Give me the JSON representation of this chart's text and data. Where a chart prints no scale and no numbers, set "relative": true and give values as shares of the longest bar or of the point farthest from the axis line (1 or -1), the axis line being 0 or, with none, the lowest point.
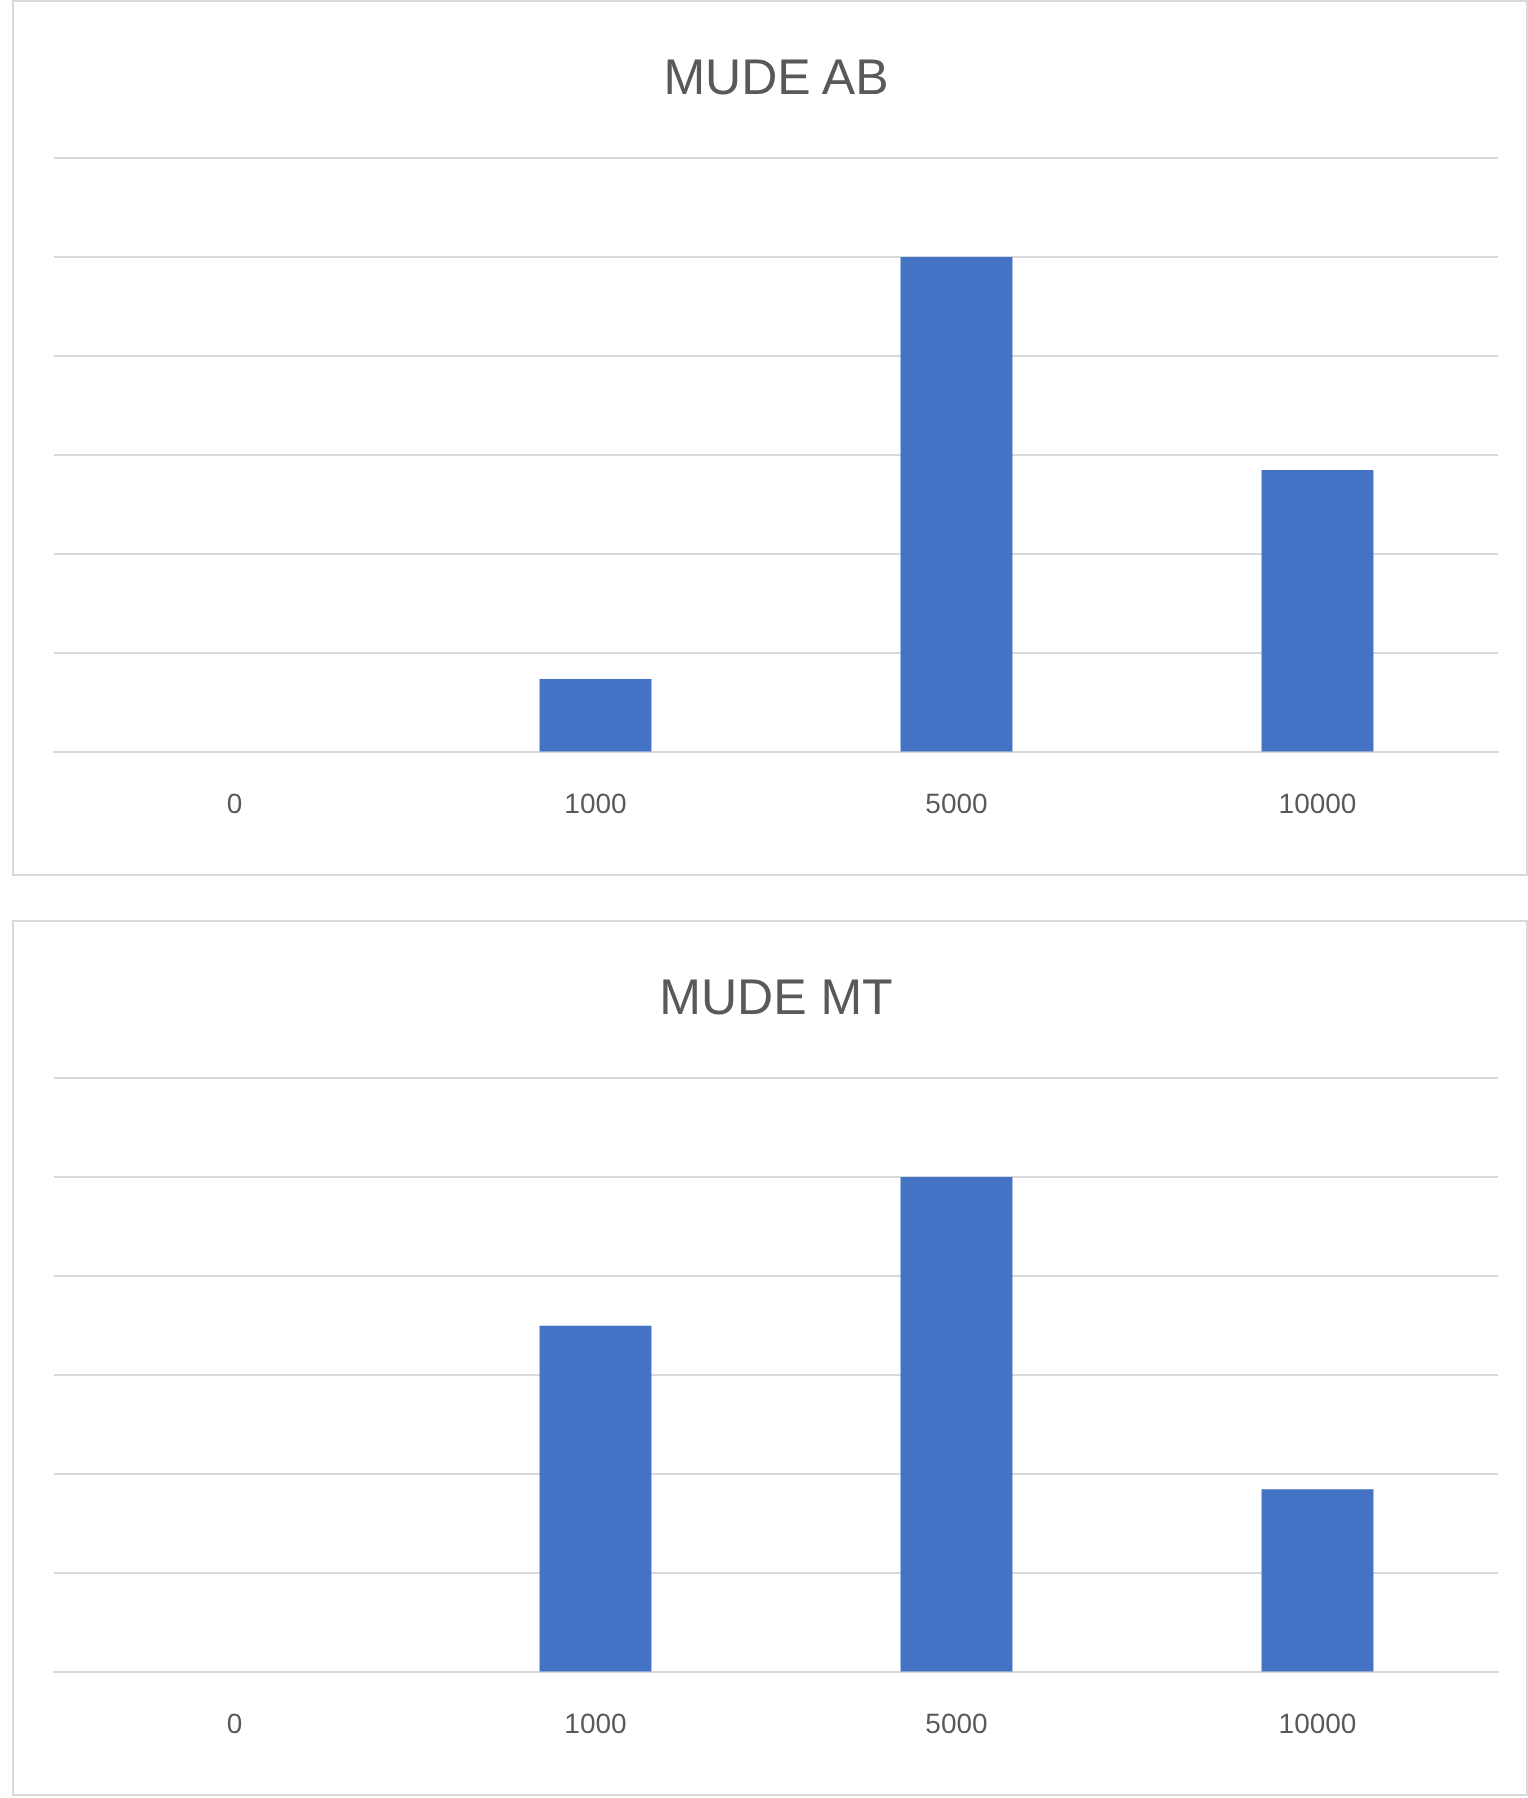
{
  "chart_data": [
    {
      "type": "bar",
      "title": "MUDE AB",
      "categories": [
        "0",
        "1000",
        "5000",
        "10000"
      ],
      "values": [
        0,
        0.148,
        1,
        0.57
      ],
      "color": "#4472c4",
      "relative": true,
      "grid": "y",
      "legend": false
    },
    {
      "type": "bar",
      "title": "MUDE MT",
      "categories": [
        "0",
        "1000",
        "5000",
        "10000"
      ],
      "values": [
        0,
        0.7,
        1,
        0.37
      ],
      "color": "#4472c4",
      "relative": true,
      "grid": "y",
      "legend": false
    }
  ]
}
